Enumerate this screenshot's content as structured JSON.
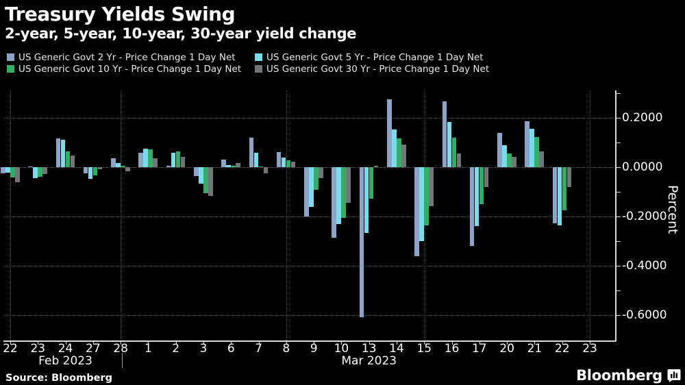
{
  "theme": {
    "background": "#000000",
    "text": "#ffffff",
    "grid": "#4d4d4d",
    "axis": "#d9d9d9"
  },
  "footer": {
    "source": "Source: Bloomberg",
    "logo": "Bloomberg"
  },
  "chart_data": {
    "type": "bar",
    "title": "Treasury Yields Swing",
    "subtitle": "2-year, 5-year, 10-year, 30-year yield change",
    "ylabel": "Percent",
    "ylim": [
      -0.7,
      0.31
    ],
    "grid": "dotted",
    "legend_position": "top-left",
    "ytick_values": [
      0.2,
      0.0,
      -0.2,
      -0.4,
      -0.6
    ],
    "ytick_labels": [
      "0.2000",
      "0.0000",
      "-0.2000",
      "-0.4000",
      "-0.6000"
    ],
    "minor_ytick_values": [
      0.3,
      0.1,
      -0.1,
      -0.3,
      -0.5
    ],
    "categories": [
      "22",
      "23",
      "24",
      "27",
      "28",
      "1",
      "2",
      "3",
      "6",
      "7",
      "8",
      "9",
      "10",
      "13",
      "14",
      "15",
      "16",
      "17",
      "20",
      "21",
      "22",
      "23"
    ],
    "months": [
      {
        "label": "Feb 2023",
        "span": [
          0,
          4
        ]
      },
      {
        "label": "Mar 2023",
        "span": [
          5,
          21
        ]
      }
    ],
    "vgrid_indices": [
      0,
      4,
      10,
      15,
      21
    ],
    "series": [
      {
        "name": "US Generic Govt 2 Yr - Price Change 1 Day Net",
        "color": "#8ba4c9",
        "values": [
          -0.025,
          0.004,
          0.118,
          -0.026,
          0.036,
          0.059,
          0.005,
          -0.036,
          0.03,
          0.12,
          0.061,
          -0.201,
          -0.285,
          -0.609,
          0.275,
          -0.361,
          0.267,
          -0.319,
          0.139,
          0.186,
          -0.229,
          null
        ]
      },
      {
        "name": "US Generic Govt 5 Yr - Price Change 1 Day Net",
        "color": "#79dcea",
        "values": [
          -0.022,
          -0.044,
          0.11,
          -0.046,
          0.016,
          0.074,
          0.058,
          -0.066,
          0.008,
          0.058,
          0.038,
          -0.161,
          -0.231,
          -0.268,
          0.153,
          -0.3,
          0.183,
          -0.239,
          0.089,
          0.156,
          -0.236,
          null
        ]
      },
      {
        "name": "US Generic Govt 10 Yr - Price Change 1 Day Net",
        "color": "#31af63",
        "values": [
          -0.043,
          -0.038,
          0.064,
          -0.033,
          0.006,
          0.072,
          0.064,
          -0.105,
          0.006,
          0.004,
          0.027,
          -0.092,
          -0.206,
          -0.128,
          0.117,
          -0.236,
          0.119,
          -0.15,
          0.056,
          0.122,
          -0.175,
          null
        ]
      },
      {
        "name": "US Generic Govt 30 Yr - Price Change 1 Day Net",
        "color": "#717478",
        "values": [
          -0.06,
          -0.029,
          0.047,
          -0.008,
          -0.017,
          0.036,
          0.041,
          -0.118,
          0.018,
          -0.024,
          0.021,
          -0.045,
          -0.145,
          0.005,
          0.092,
          -0.158,
          0.056,
          -0.081,
          0.042,
          0.064,
          -0.081,
          null
        ]
      }
    ]
  }
}
